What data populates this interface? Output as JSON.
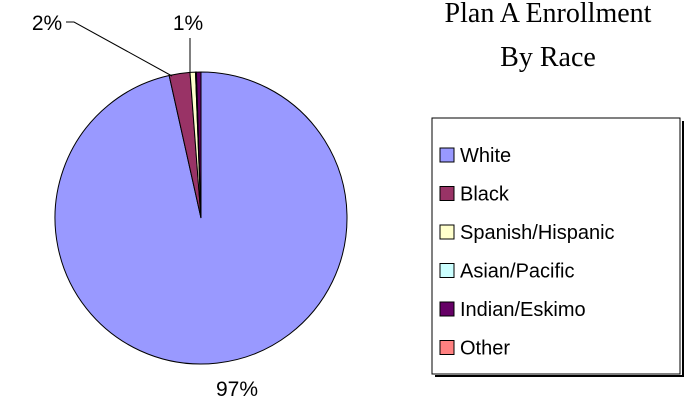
{
  "chart_data": {
    "type": "pie",
    "title": [
      "Plan A Enrollment",
      "By Race"
    ],
    "categories": [
      "White",
      "Black",
      "Spanish/Hispanic",
      "Asian/Pacific",
      "Indian/Eskimo",
      "Other"
    ],
    "values": [
      96.5,
      2.3,
      0.6,
      0.1,
      0.5,
      0.0
    ],
    "data_labels": [
      {
        "category": "White",
        "text": "97%"
      },
      {
        "category": "Black",
        "text": "2%"
      },
      {
        "category": "Spanish/Hispanic",
        "text": "1%"
      }
    ],
    "legend": {
      "placement": "right",
      "entries": [
        "White",
        "Black",
        "Spanish/Hispanic",
        "Asian/Pacific",
        "Indian/Eskimo",
        "Other"
      ]
    },
    "colors": {
      "White": "#9999ff",
      "Black": "#993366",
      "Spanish/Hispanic": "#ffffcc",
      "Asian/Pacific": "#ccffff",
      "Indian/Eskimo": "#660066",
      "Other": "#ff8080"
    }
  }
}
